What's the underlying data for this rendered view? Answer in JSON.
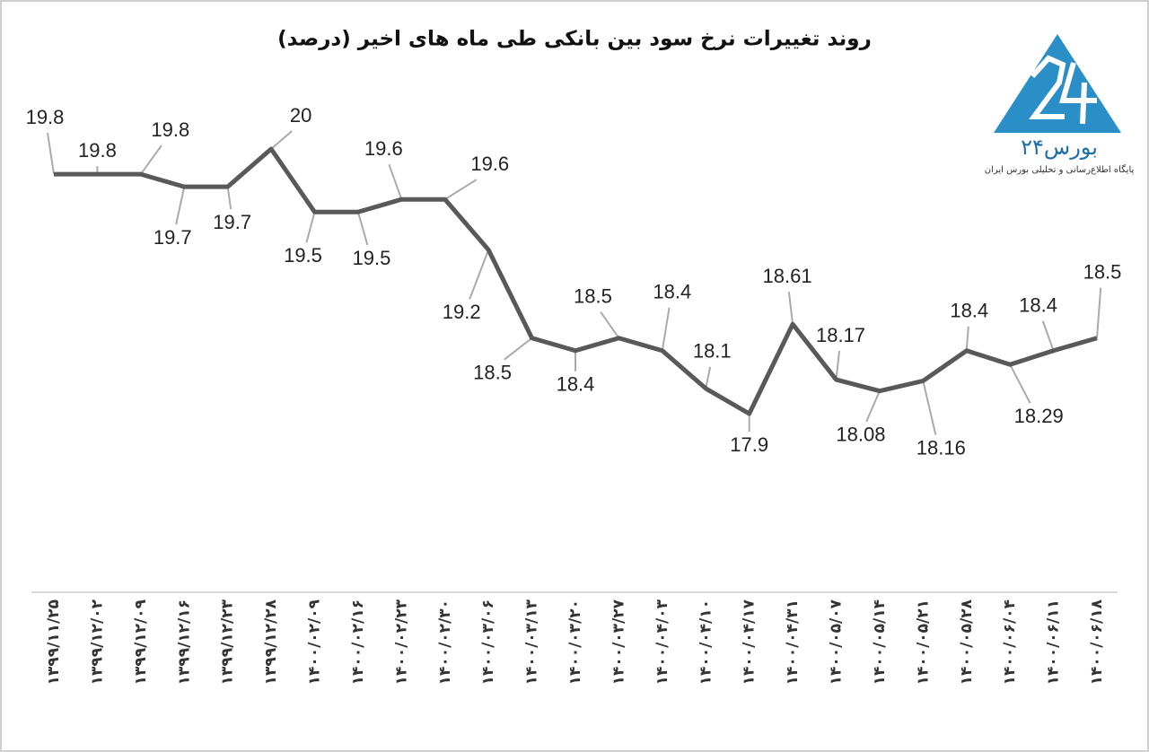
{
  "chart_data": {
    "type": "line",
    "title": "روند تغییرات نرخ سود بین بانکی طی ماه های اخیر (درصد)",
    "categories": [
      "۱۳۹۹/۱۱/۲۵",
      "۱۳۹۹/۱۲/۰۲",
      "۱۳۹۹/۱۲/۰۹",
      "۱۳۹۹/۱۲/۱۶",
      "۱۳۹۹/۱۲/۲۳",
      "۱۳۹۹/۱۲/۲۸",
      "۱۴۰۰/۰۲/۰۹",
      "۱۴۰۰/۰۲/۱۶",
      "۱۴۰۰/۰۲/۲۳",
      "۱۴۰۰/۰۲/۳۰",
      "۱۴۰۰/۰۳/۰۶",
      "۱۴۰۰/۰۳/۱۳",
      "۱۴۰۰/۰۳/۲۰",
      "۱۴۰۰/۰۳/۲۷",
      "۱۴۰۰/۰۴/۰۳",
      "۱۴۰۰/۰۴/۱۰",
      "۱۴۰۰/۰۴/۱۷",
      "۱۴۰۰/۰۴/۳۱",
      "۱۴۰۰/۰۵/۰۷",
      "۱۴۰۰/۰۵/۱۴",
      "۱۴۰۰/۰۵/۲۱",
      "۱۴۰۰/۰۵/۲۸",
      "۱۴۰۰/۰۶/۰۴",
      "۱۴۰۰/۰۶/۱۱",
      "۱۴۰۰/۰۶/۱۸"
    ],
    "values": [
      19.8,
      19.8,
      19.8,
      19.7,
      19.7,
      20,
      19.5,
      19.5,
      19.6,
      19.6,
      19.2,
      18.5,
      18.4,
      18.5,
      18.4,
      18.1,
      17.9,
      18.61,
      18.17,
      18.08,
      18.16,
      18.4,
      18.29,
      18.4,
      18.5
    ],
    "color": "#595959"
  },
  "logo": {
    "name": "بورس۲۴",
    "tagline": "پایگاه اطلاع‌رسانی و تحلیلی بورس ایران"
  }
}
